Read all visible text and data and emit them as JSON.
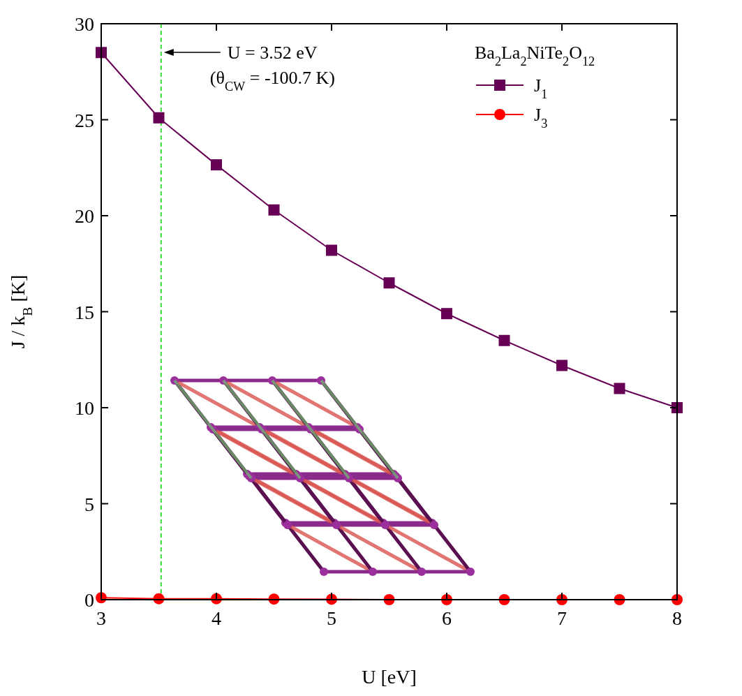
{
  "chart_data": {
    "type": "line",
    "xlabel": "U [eV]",
    "ylabel": "J / k$_{B}$ [K]",
    "legend_title": "Ba$_{2}$La$_{2}$NiTe$_{2}$O$_{12}$",
    "x": [
      3,
      3.5,
      4,
      4.5,
      5,
      5.5,
      6,
      6.5,
      7,
      7.5,
      8
    ],
    "series": [
      {
        "name": "J$_{1}$",
        "color": "#660055",
        "marker": "square",
        "values": [
          28.5,
          25.1,
          22.65,
          20.3,
          18.2,
          16.5,
          14.9,
          13.5,
          12.2,
          11.0,
          10.0
        ]
      },
      {
        "name": "J$_{3}$",
        "color": "#ff0000",
        "marker": "circle",
        "values": [
          0.1,
          0.05,
          0.05,
          0.03,
          0.02,
          0.0,
          0.0,
          0.0,
          0.0,
          0.0,
          0.0
        ]
      }
    ],
    "xlim": [
      3,
      8
    ],
    "xticks": [
      3,
      4,
      5,
      6,
      7,
      8
    ],
    "ylim": [
      0,
      30
    ],
    "yticks": [
      0,
      5,
      10,
      15,
      20,
      25,
      30
    ],
    "ref_lines": [
      {
        "axis": "x",
        "value": 3.52,
        "color": "#33dd33",
        "line_style": "dashed"
      }
    ],
    "annotations": [
      "U = 3.52 eV",
      "(θ$_{CW}$ = -100.7 K)"
    ],
    "legend": "top right",
    "grid": false
  }
}
